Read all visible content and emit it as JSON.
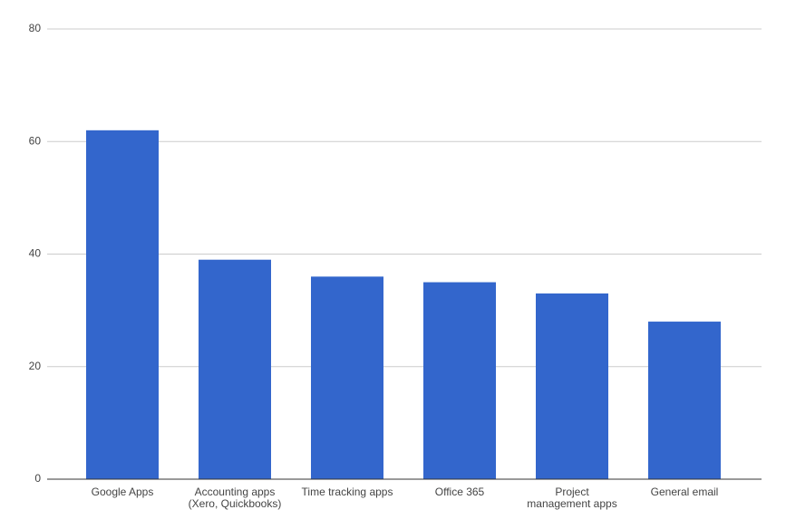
{
  "chart_data": {
    "type": "bar",
    "categories": [
      "Google Apps",
      "Accounting apps\n(Xero, Quickbooks)",
      "Time tracking apps",
      "Office 365",
      "Project\nmanagement apps",
      "General email"
    ],
    "values": [
      62,
      39,
      36,
      35,
      33,
      28
    ],
    "color": "#3366cc",
    "ylim": [
      0,
      80
    ],
    "yticks": [
      0,
      20,
      40,
      60,
      80
    ],
    "grid": true
  }
}
